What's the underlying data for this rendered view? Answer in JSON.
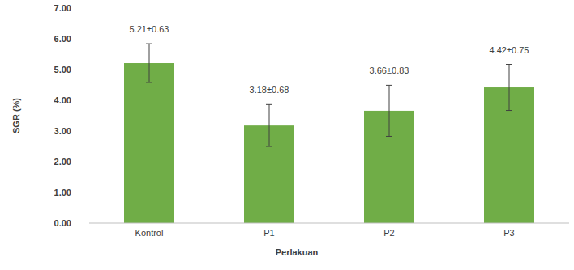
{
  "chart_data": {
    "type": "bar",
    "x_label": "Perlakuan",
    "y_label": "SGR (%)",
    "categories": [
      "Kontrol",
      "P1",
      "P2",
      "P3"
    ],
    "values": [
      5.21,
      3.18,
      3.66,
      4.42
    ],
    "errors": [
      0.63,
      0.68,
      0.83,
      0.75
    ],
    "value_labels": [
      "5.21±0.63",
      "3.18±0.68",
      "3.66±0.83",
      "4.42±0.75"
    ],
    "color": "#70ad47",
    "data_labels": true,
    "grid": false,
    "ylim": [
      0,
      7
    ],
    "yticks": [
      {
        "value": 0,
        "label": "0.00"
      },
      {
        "value": 1,
        "label": "1.00"
      },
      {
        "value": 2,
        "label": "2.00"
      },
      {
        "value": 3,
        "label": "3.00"
      },
      {
        "value": 4,
        "label": "4.00"
      },
      {
        "value": 5,
        "label": "5.00"
      },
      {
        "value": 6,
        "label": "6.00"
      },
      {
        "value": 7,
        "label": "7.00"
      }
    ]
  }
}
